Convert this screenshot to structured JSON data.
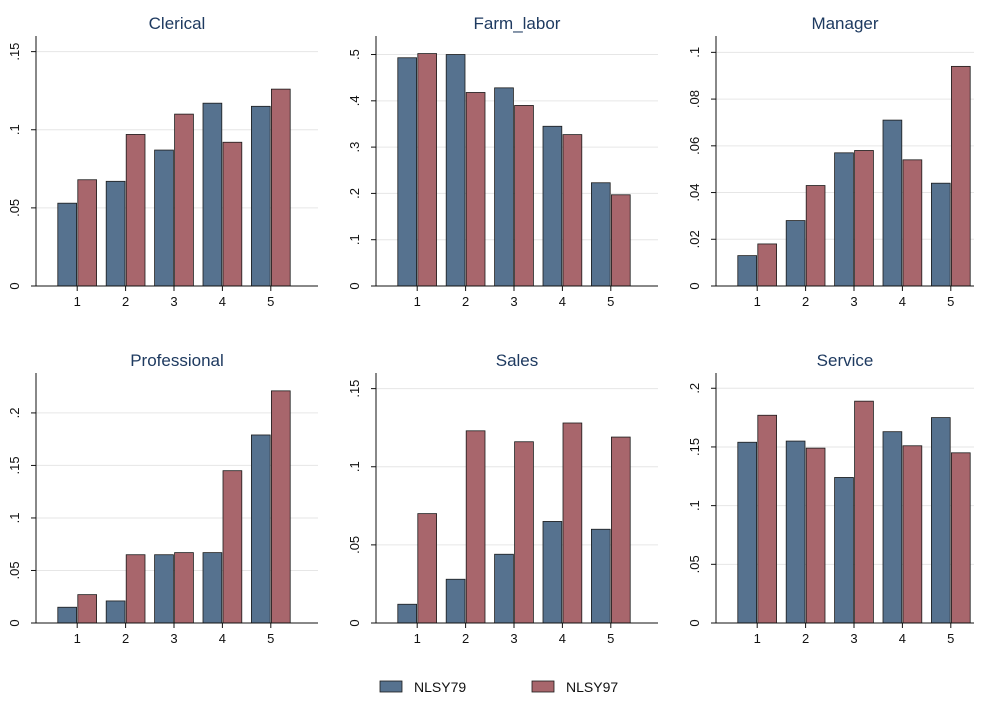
{
  "chart_data": {
    "type": "bar",
    "layout": "2x3 panel grid",
    "categories": [
      "1",
      "2",
      "3",
      "4",
      "5"
    ],
    "legend": {
      "placement": "bottom",
      "items": [
        {
          "name": "NLSY79",
          "color": "#56728f"
        },
        {
          "name": "NLSY97",
          "color": "#a8666c"
        }
      ]
    },
    "grid": true,
    "panels": [
      {
        "title": "Clerical",
        "ylim": [
          0,
          0.16
        ],
        "yticks": [
          {
            "value": 0,
            "label": "0"
          },
          {
            "value": 0.05,
            "label": ".05"
          },
          {
            "value": 0.1,
            "label": ".1"
          },
          {
            "value": 0.15,
            "label": ".15"
          }
        ],
        "series": [
          {
            "name": "NLSY79",
            "values": [
              0.053,
              0.067,
              0.087,
              0.117,
              0.115
            ]
          },
          {
            "name": "NLSY97",
            "values": [
              0.068,
              0.097,
              0.11,
              0.092,
              0.126
            ]
          }
        ]
      },
      {
        "title": "Farm_labor",
        "ylim": [
          0,
          0.54
        ],
        "yticks": [
          {
            "value": 0,
            "label": "0"
          },
          {
            "value": 0.1,
            "label": ".1"
          },
          {
            "value": 0.2,
            "label": ".2"
          },
          {
            "value": 0.3,
            "label": ".3"
          },
          {
            "value": 0.4,
            "label": ".4"
          },
          {
            "value": 0.5,
            "label": ".5"
          }
        ],
        "series": [
          {
            "name": "NLSY79",
            "values": [
              0.493,
              0.5,
              0.428,
              0.345,
              0.223
            ]
          },
          {
            "name": "NLSY97",
            "values": [
              0.502,
              0.418,
              0.39,
              0.327,
              0.197
            ]
          }
        ]
      },
      {
        "title": "Manager",
        "ylim": [
          0,
          0.107
        ],
        "yticks": [
          {
            "value": 0,
            "label": "0"
          },
          {
            "value": 0.02,
            "label": ".02"
          },
          {
            "value": 0.04,
            "label": ".04"
          },
          {
            "value": 0.06,
            "label": ".06"
          },
          {
            "value": 0.08,
            "label": ".08"
          },
          {
            "value": 0.1,
            "label": ".1"
          }
        ],
        "series": [
          {
            "name": "NLSY79",
            "values": [
              0.013,
              0.028,
              0.057,
              0.071,
              0.044
            ]
          },
          {
            "name": "NLSY97",
            "values": [
              0.018,
              0.043,
              0.058,
              0.054,
              0.094
            ]
          }
        ]
      },
      {
        "title": "Professional",
        "ylim": [
          0,
          0.238
        ],
        "yticks": [
          {
            "value": 0,
            "label": "0"
          },
          {
            "value": 0.05,
            "label": ".05"
          },
          {
            "value": 0.1,
            "label": ".1"
          },
          {
            "value": 0.15,
            "label": ".15"
          },
          {
            "value": 0.2,
            "label": ".2"
          }
        ],
        "series": [
          {
            "name": "NLSY79",
            "values": [
              0.015,
              0.021,
              0.065,
              0.067,
              0.179
            ]
          },
          {
            "name": "NLSY97",
            "values": [
              0.027,
              0.065,
              0.067,
              0.145,
              0.221
            ]
          }
        ]
      },
      {
        "title": "Sales",
        "ylim": [
          0,
          0.16
        ],
        "yticks": [
          {
            "value": 0,
            "label": "0"
          },
          {
            "value": 0.05,
            "label": ".05"
          },
          {
            "value": 0.1,
            "label": ".1"
          },
          {
            "value": 0.15,
            "label": ".15"
          }
        ],
        "series": [
          {
            "name": "NLSY79",
            "values": [
              0.012,
              0.028,
              0.044,
              0.065,
              0.06
            ]
          },
          {
            "name": "NLSY97",
            "values": [
              0.07,
              0.123,
              0.116,
              0.128,
              0.119
            ]
          }
        ]
      },
      {
        "title": "Service",
        "ylim": [
          0,
          0.213
        ],
        "yticks": [
          {
            "value": 0,
            "label": "0"
          },
          {
            "value": 0.05,
            "label": ".05"
          },
          {
            "value": 0.1,
            "label": ".1"
          },
          {
            "value": 0.15,
            "label": ".15"
          },
          {
            "value": 0.2,
            "label": ".2"
          }
        ],
        "series": [
          {
            "name": "NLSY79",
            "values": [
              0.154,
              0.155,
              0.124,
              0.163,
              0.175
            ]
          },
          {
            "name": "NLSY97",
            "values": [
              0.177,
              0.149,
              0.189,
              0.151,
              0.145
            ]
          }
        ]
      }
    ]
  }
}
